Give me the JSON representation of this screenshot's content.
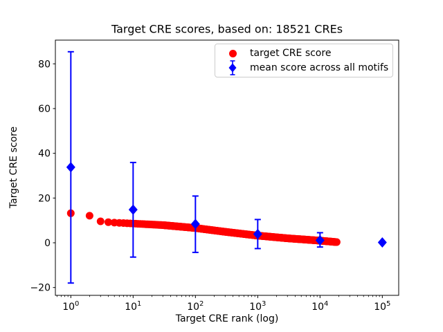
{
  "chart_data": {
    "type": "scatter",
    "title": "Target CRE scores, based on: 18521 CREs",
    "xlabel": "Target CRE rank (log)",
    "ylabel": "Target CRE score",
    "n_cres": 18521,
    "x_scale": "log",
    "grid": false,
    "legend_position": "upper right",
    "xlim_log10": [
      -0.248,
      5.263
    ],
    "ylim": [
      -23.5,
      90.6
    ],
    "yticks": [
      -20,
      0,
      20,
      40,
      60,
      80
    ],
    "xtick_exponents": [
      0,
      1,
      2,
      3,
      4,
      5
    ],
    "colors": {
      "target": "#ff0000",
      "mean": "#0000ff",
      "axis": "#000000",
      "legend_border": "#cccccc",
      "background": "#ffffff"
    },
    "series": [
      {
        "name": "target",
        "label": "target CRE score",
        "marker": "circle",
        "color": "#ff0000",
        "rank_range": [
          1,
          18521
        ],
        "curve_anchors_log10rank_score": [
          [
            0.0,
            13.2
          ],
          [
            0.301,
            12.1
          ],
          [
            0.477,
            9.6
          ],
          [
            0.602,
            9.2
          ],
          [
            0.7,
            9.0
          ],
          [
            1.0,
            8.6
          ],
          [
            1.477,
            7.9
          ],
          [
            2.0,
            6.6
          ],
          [
            2.477,
            4.9
          ],
          [
            3.0,
            3.2
          ],
          [
            3.477,
            2.0
          ],
          [
            4.0,
            0.95
          ],
          [
            4.2676,
            0.3
          ]
        ]
      },
      {
        "name": "mean",
        "label": "mean score across all motifs",
        "marker": "diamond",
        "color": "#0000ff",
        "points": [
          {
            "rank": 1,
            "mean": 33.8,
            "lo": -18.0,
            "hi": 85.4
          },
          {
            "rank": 10,
            "mean": 14.8,
            "lo": -6.4,
            "hi": 35.9
          },
          {
            "rank": 100,
            "mean": 8.4,
            "lo": -4.3,
            "hi": 20.9
          },
          {
            "rank": 1000,
            "mean": 3.9,
            "lo": -2.6,
            "hi": 10.4
          },
          {
            "rank": 10000,
            "mean": 1.1,
            "lo": -1.9,
            "hi": 4.5
          },
          {
            "rank": 100000,
            "mean": 0.15,
            "lo": 0.15,
            "hi": 0.15
          }
        ]
      }
    ]
  }
}
